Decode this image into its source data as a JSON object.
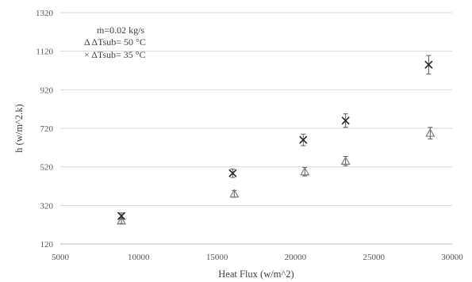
{
  "chart_data": {
    "type": "scatter",
    "xlabel": "Heat Flux (w/m^2)",
    "ylabel": "h (w/m^2.k)",
    "xlim": [
      5000,
      30000
    ],
    "ylim": [
      120,
      1320
    ],
    "xticks": [
      5000,
      10000,
      15000,
      20000,
      25000,
      30000
    ],
    "yticks": [
      120,
      320,
      520,
      720,
      920,
      1120,
      1320
    ],
    "grid": "horizontal",
    "legend_position": "top-left",
    "legend": [
      "ṁ=0.02 kg/s",
      "Δ ΔTsub= 50 °C",
      "× ΔTsub= 35 °C"
    ],
    "series": [
      {
        "marker": "triangle",
        "points": [
          {
            "x": 8900,
            "y": 240,
            "err": 14
          },
          {
            "x": 16100,
            "y": 380,
            "err": 18
          },
          {
            "x": 20600,
            "y": 495,
            "err": 22
          },
          {
            "x": 23200,
            "y": 550,
            "err": 24
          },
          {
            "x": 28600,
            "y": 695,
            "err": 30
          }
        ]
      },
      {
        "marker": "x",
        "points": [
          {
            "x": 8900,
            "y": 265,
            "err": 16
          },
          {
            "x": 16000,
            "y": 487,
            "err": 22
          },
          {
            "x": 20500,
            "y": 660,
            "err": 30
          },
          {
            "x": 23200,
            "y": 760,
            "err": 35
          },
          {
            "x": 28500,
            "y": 1050,
            "err": 48
          }
        ]
      }
    ]
  }
}
